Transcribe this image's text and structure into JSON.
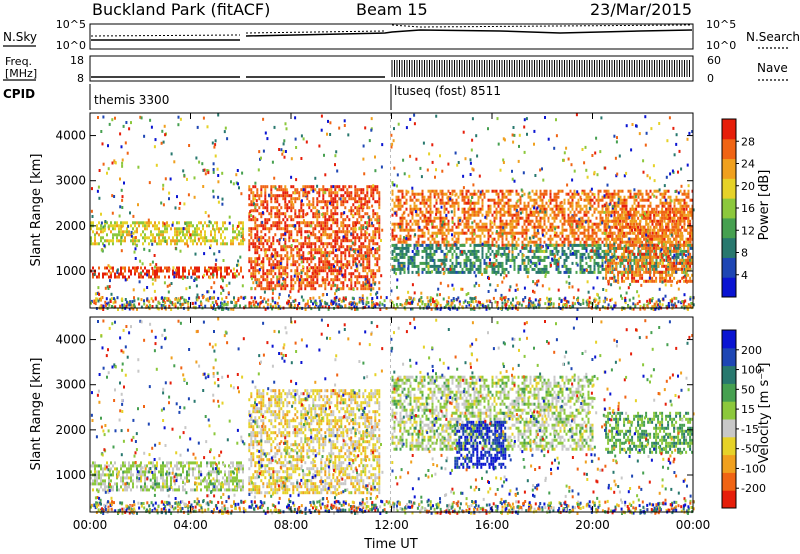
{
  "header": {
    "site": "Buckland Park (fitACF)",
    "beam": "Beam 15",
    "date": "23/Mar/2015"
  },
  "panels": {
    "left_labels": [
      "N.Sky",
      "Freq.",
      "[MHz]",
      "CPID"
    ],
    "right_labels": [
      "N.Search",
      "Nave"
    ],
    "nsky_ticks": [
      "10^5",
      "10^0"
    ],
    "nsearch_ticks": [
      "10^5",
      "10^0"
    ],
    "freq_ticks": [
      "18",
      "8"
    ],
    "nave_ticks": [
      "60",
      "0"
    ],
    "cpid_before": "themis 3300",
    "cpid_after": "ltuseq (fost) 8511"
  },
  "colors": {
    "power": [
      "#0a14d2",
      "#1e46b4",
      "#28786e",
      "#46a050",
      "#8cc83c",
      "#e6d228",
      "#f0a01e",
      "#f06414",
      "#e61e0a"
    ],
    "velocity": [
      "#e61e0a",
      "#f06414",
      "#f0a01e",
      "#e6d228",
      "#c8c8c8",
      "#8cc83c",
      "#46a050",
      "#28786e",
      "#1e46b4",
      "#0a14d2"
    ]
  },
  "chart_data": [
    {
      "type": "heatmap",
      "title": "Power",
      "ylabel": "Slant Range [km]",
      "xlabel": "",
      "ylim": [
        180,
        4500
      ],
      "yticks": [
        1000,
        2000,
        3000,
        4000
      ],
      "xticks": [
        "00:00",
        "04:00",
        "08:00",
        "12:00",
        "16:00",
        "20:00",
        "00:00"
      ],
      "xlim_hours": [
        0,
        24
      ],
      "colorbar": {
        "label": "Power [dB]",
        "ticks": [
          "4",
          "8",
          "12",
          "16",
          "20",
          "24",
          "28"
        ],
        "range": [
          0,
          30
        ]
      },
      "data_gap_hours": [
        6.15,
        6.3
      ],
      "regions": [
        {
          "t": [
            0.0,
            6.1
          ],
          "range_km": [
            850,
            1100
          ],
          "value_db": 28
        },
        {
          "t": [
            0.0,
            6.1
          ],
          "range_km": [
            1600,
            2100
          ],
          "value_db": 18
        },
        {
          "t": [
            6.3,
            11.5
          ],
          "range_km": [
            600,
            2900
          ],
          "value_db": 26
        },
        {
          "t": [
            12.0,
            24.0
          ],
          "range_km": [
            1600,
            2800
          ],
          "value_db": 24
        },
        {
          "t": [
            12.0,
            24.0
          ],
          "range_km": [
            1000,
            1600
          ],
          "value_db": 10
        },
        {
          "t": [
            20.5,
            24.0
          ],
          "range_km": [
            800,
            2400
          ],
          "value_db": 24
        }
      ]
    },
    {
      "type": "heatmap",
      "title": "Velocity",
      "ylabel": "Slant Range [km]",
      "xlabel": "Time UT",
      "ylim": [
        180,
        4500
      ],
      "yticks": [
        1000,
        2000,
        3000,
        4000
      ],
      "xticks": [
        "00:00",
        "04:00",
        "08:00",
        "12:00",
        "16:00",
        "20:00",
        "00:00"
      ],
      "xlim_hours": [
        0,
        24
      ],
      "colorbar": {
        "label": "Velocity [m s⁻¹]",
        "ticks": [
          "-200",
          "-100",
          "-50",
          "-15",
          "15",
          "50",
          "100",
          "200"
        ],
        "range": [
          -250,
          250
        ]
      },
      "data_gap_hours": [
        6.15,
        6.3
      ],
      "regions": [
        {
          "t": [
            0.0,
            6.1
          ],
          "range_km": [
            700,
            1300
          ],
          "value_ms": 0
        },
        {
          "t": [
            6.3,
            11.5
          ],
          "range_km": [
            600,
            2900
          ],
          "value_ms": -60
        },
        {
          "t": [
            12.0,
            20.0
          ],
          "range_km": [
            1600,
            3200
          ],
          "value_ms": 0
        },
        {
          "t": [
            14.5,
            16.5
          ],
          "range_km": [
            1200,
            2200
          ],
          "value_ms": 200
        },
        {
          "t": [
            20.5,
            24.0
          ],
          "range_km": [
            1500,
            2400
          ],
          "value_ms": 60
        }
      ]
    }
  ]
}
